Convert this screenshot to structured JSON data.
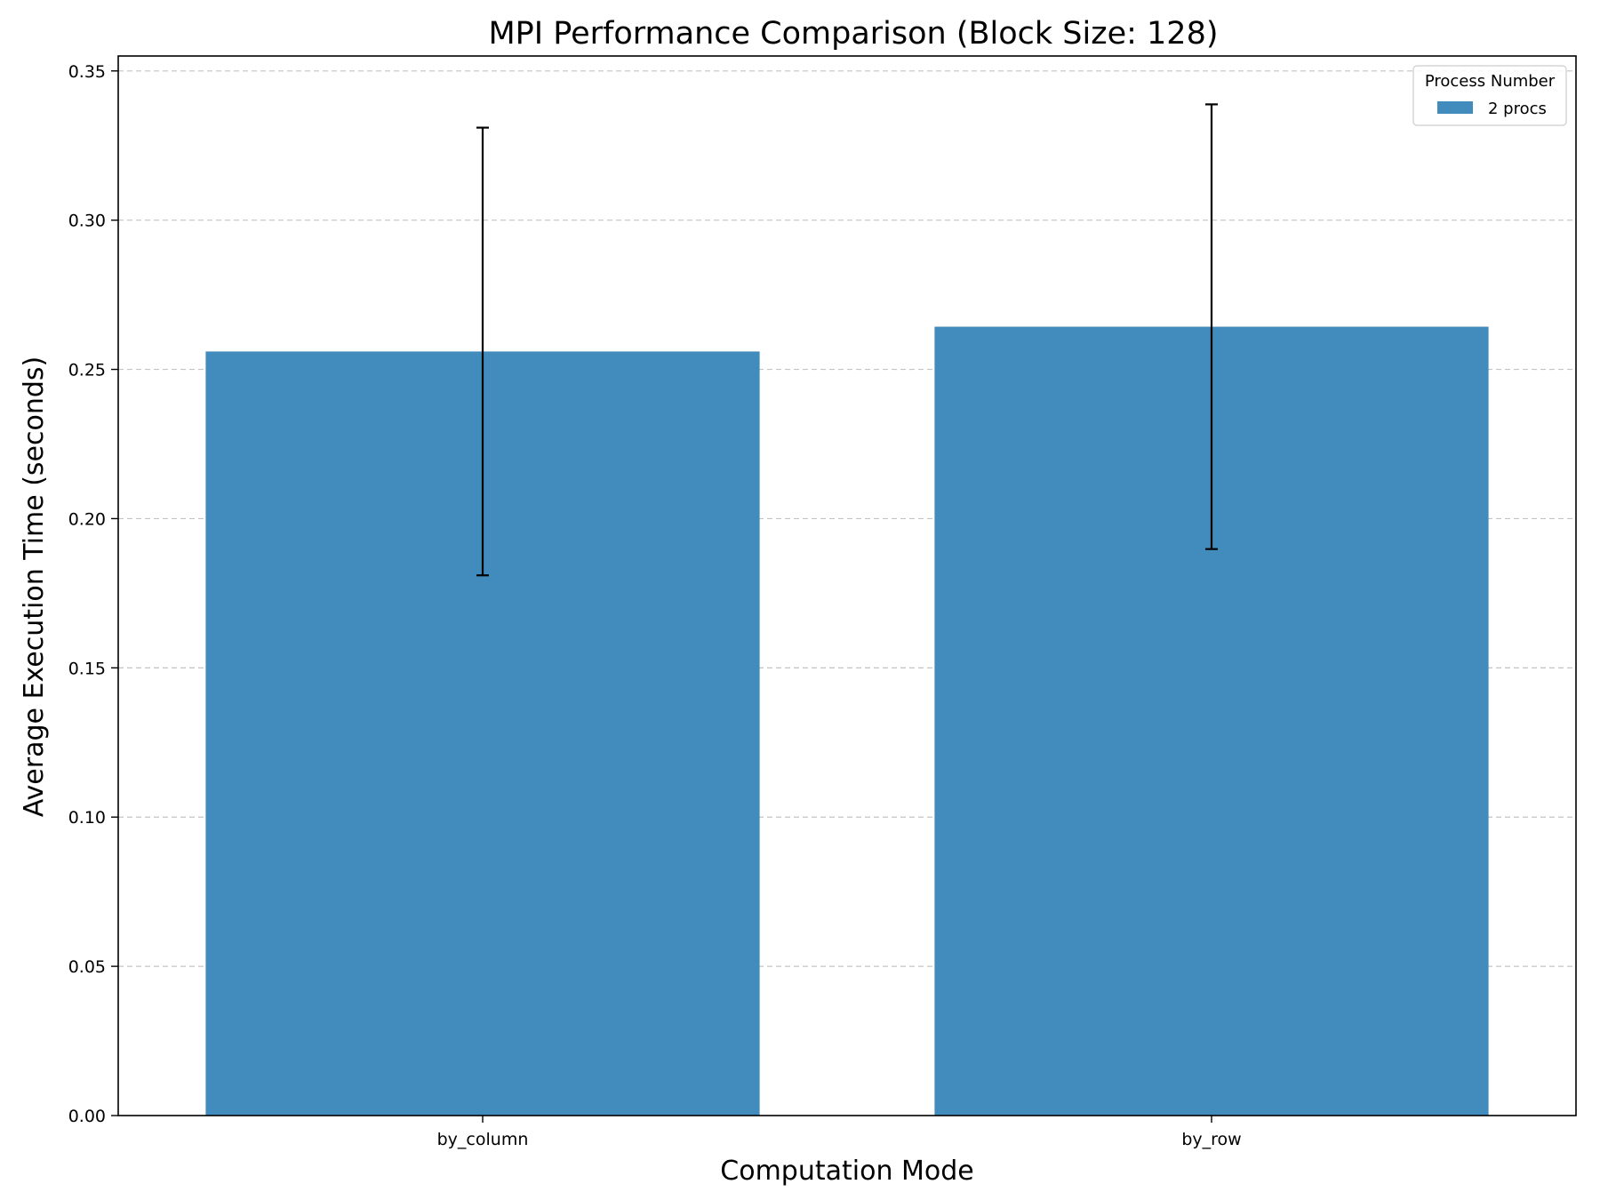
{
  "chart_data": {
    "type": "bar",
    "title": "MPI Performance Comparison (Block Size: 128)",
    "xlabel": "Computation Mode",
    "ylabel": "Average Execution Time (seconds)",
    "categories": [
      "by_column",
      "by_row"
    ],
    "series": [
      {
        "name": "2 procs",
        "values": [
          0.256,
          0.2643
        ],
        "error": [
          0.075,
          0.0745
        ],
        "color": "#428bbd"
      }
    ],
    "ylim": [
      0,
      0.355
    ],
    "yticks": [
      0.0,
      0.05,
      0.1,
      0.15,
      0.2,
      0.25,
      0.3,
      0.35
    ],
    "ytick_labels": [
      "0.00",
      "0.05",
      "0.10",
      "0.15",
      "0.20",
      "0.25",
      "0.30",
      "0.35"
    ],
    "grid": "y-dashed",
    "legend": {
      "title": "Process Number",
      "position": "top-right"
    }
  }
}
